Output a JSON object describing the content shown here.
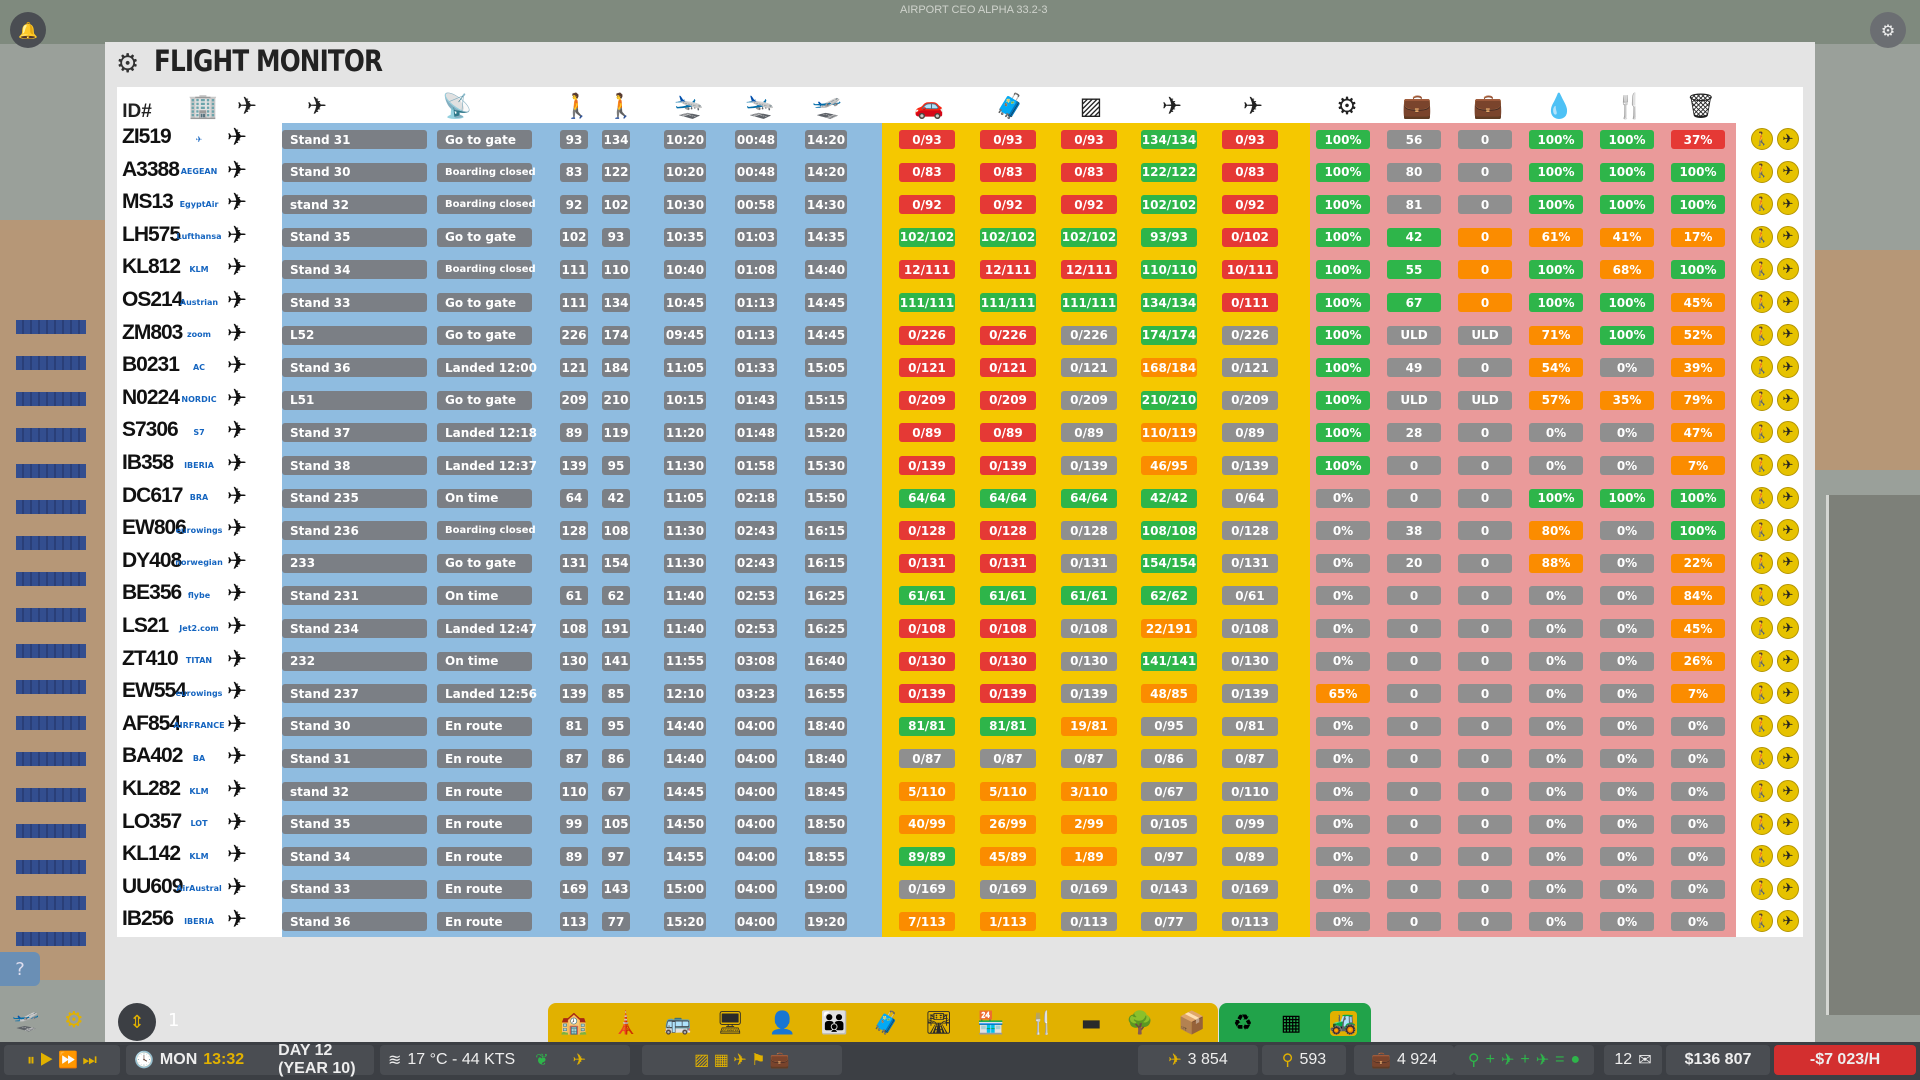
{
  "app": {
    "title": "FLIGHT MONITOR",
    "watermark": "AIRPORT CEO ALPHA 33.2-3"
  },
  "headers": {
    "id": "ID#"
  },
  "rows": [
    {
      "id": "ZI519",
      "logo": "✈",
      "stand": "Stand 31",
      "status": "Go to gate",
      "p1": "93",
      "p2": "134",
      "t1": "10:20",
      "t2": "00:48",
      "t3": "14:20",
      "b1": "0/93",
      "b2": "0/93",
      "b3": "0/93",
      "b4": "134/134",
      "b5": "0/93",
      "s1": "100%",
      "s2": "56",
      "s3": "0",
      "s4": "100%",
      "s5": "100%",
      "s6": "37%",
      "c": [
        "red",
        "red",
        "red",
        "grn",
        "red",
        "grn",
        "gry2",
        "gry2",
        "grn",
        "grn",
        "red"
      ]
    },
    {
      "id": "A3388",
      "logo": "AEGEAN",
      "stand": "Stand 30",
      "status": "Boarding closed",
      "p1": "83",
      "p2": "122",
      "t1": "10:20",
      "t2": "00:48",
      "t3": "14:20",
      "b1": "0/83",
      "b2": "0/83",
      "b3": "0/83",
      "b4": "122/122",
      "b5": "0/83",
      "s1": "100%",
      "s2": "80",
      "s3": "0",
      "s4": "100%",
      "s5": "100%",
      "s6": "100%",
      "c": [
        "red",
        "red",
        "red",
        "grn",
        "red",
        "grn",
        "gry2",
        "gry2",
        "grn",
        "grn",
        "grn"
      ]
    },
    {
      "id": "MS13",
      "logo": "EgyptAir",
      "stand": "stand 32",
      "status": "Boarding closed",
      "p1": "92",
      "p2": "102",
      "t1": "10:30",
      "t2": "00:58",
      "t3": "14:30",
      "b1": "0/92",
      "b2": "0/92",
      "b3": "0/92",
      "b4": "102/102",
      "b5": "0/92",
      "s1": "100%",
      "s2": "81",
      "s3": "0",
      "s4": "100%",
      "s5": "100%",
      "s6": "100%",
      "c": [
        "red",
        "red",
        "red",
        "grn",
        "red",
        "grn",
        "gry2",
        "gry2",
        "grn",
        "grn",
        "grn"
      ]
    },
    {
      "id": "LH575",
      "logo": "Lufthansa",
      "stand": "Stand 35",
      "status": "Go to gate",
      "p1": "102",
      "p2": "93",
      "t1": "10:35",
      "t2": "01:03",
      "t3": "14:35",
      "b1": "102/102",
      "b2": "102/102",
      "b3": "102/102",
      "b4": "93/93",
      "b5": "0/102",
      "s1": "100%",
      "s2": "42",
      "s3": "0",
      "s4": "61%",
      "s5": "41%",
      "s6": "17%",
      "c": [
        "grn",
        "grn",
        "grn",
        "grn",
        "red",
        "grn",
        "grn",
        "ora",
        "ora",
        "ora",
        "ora"
      ]
    },
    {
      "id": "KL812",
      "logo": "KLM",
      "stand": "Stand 34",
      "status": "Boarding closed",
      "p1": "111",
      "p2": "110",
      "t1": "10:40",
      "t2": "01:08",
      "t3": "14:40",
      "b1": "12/111",
      "b2": "12/111",
      "b3": "12/111",
      "b4": "110/110",
      "b5": "10/111",
      "s1": "100%",
      "s2": "55",
      "s3": "0",
      "s4": "100%",
      "s5": "68%",
      "s6": "100%",
      "c": [
        "red",
        "red",
        "red",
        "grn",
        "red",
        "grn",
        "grn",
        "ora",
        "grn",
        "ora",
        "grn"
      ]
    },
    {
      "id": "OS214",
      "logo": "Austrian",
      "stand": "Stand 33",
      "status": "Go to gate",
      "p1": "111",
      "p2": "134",
      "t1": "10:45",
      "t2": "01:13",
      "t3": "14:45",
      "b1": "111/111",
      "b2": "111/111",
      "b3": "111/111",
      "b4": "134/134",
      "b5": "0/111",
      "s1": "100%",
      "s2": "67",
      "s3": "0",
      "s4": "100%",
      "s5": "100%",
      "s6": "45%",
      "c": [
        "grn",
        "grn",
        "grn",
        "grn",
        "red",
        "grn",
        "grn",
        "ora",
        "grn",
        "grn",
        "ora"
      ]
    },
    {
      "id": "ZM803",
      "logo": "zoom",
      "stand": "L52",
      "status": "Go to gate",
      "p1": "226",
      "p2": "174",
      "t1": "09:45",
      "t2": "01:13",
      "t3": "14:45",
      "b1": "0/226",
      "b2": "0/226",
      "b3": "0/226",
      "b4": "174/174",
      "b5": "0/226",
      "s1": "100%",
      "s2": "ULD",
      "s3": "ULD",
      "s4": "71%",
      "s5": "100%",
      "s6": "52%",
      "c": [
        "red",
        "red",
        "gry2",
        "grn",
        "gry2",
        "grn",
        "gry2",
        "gry2",
        "ora",
        "grn",
        "ora"
      ]
    },
    {
      "id": "B0231",
      "logo": "AC",
      "stand": "Stand 36",
      "status": "Landed  12:00",
      "p1": "121",
      "p2": "184",
      "t1": "11:05",
      "t2": "01:33",
      "t3": "15:05",
      "b1": "0/121",
      "b2": "0/121",
      "b3": "0/121",
      "b4": "168/184",
      "b5": "0/121",
      "s1": "100%",
      "s2": "49",
      "s3": "0",
      "s4": "54%",
      "s5": "0%",
      "s6": "39%",
      "c": [
        "red",
        "red",
        "gry2",
        "ora",
        "gry2",
        "grn",
        "gry2",
        "gry2",
        "ora",
        "gry2",
        "ora"
      ]
    },
    {
      "id": "N0224",
      "logo": "NORDIC",
      "stand": "L51",
      "status": "Go to gate",
      "p1": "209",
      "p2": "210",
      "t1": "10:15",
      "t2": "01:43",
      "t3": "15:15",
      "b1": "0/209",
      "b2": "0/209",
      "b3": "0/209",
      "b4": "210/210",
      "b5": "0/209",
      "s1": "100%",
      "s2": "ULD",
      "s3": "ULD",
      "s4": "57%",
      "s5": "35%",
      "s6": "79%",
      "c": [
        "red",
        "red",
        "gry2",
        "grn",
        "gry2",
        "grn",
        "gry2",
        "gry2",
        "ora",
        "ora",
        "ora"
      ]
    },
    {
      "id": "S7306",
      "logo": "S7",
      "stand": "Stand 37",
      "status": "Landed  12:18",
      "p1": "89",
      "p2": "119",
      "t1": "11:20",
      "t2": "01:48",
      "t3": "15:20",
      "b1": "0/89",
      "b2": "0/89",
      "b3": "0/89",
      "b4": "110/119",
      "b5": "0/89",
      "s1": "100%",
      "s2": "28",
      "s3": "0",
      "s4": "0%",
      "s5": "0%",
      "s6": "47%",
      "c": [
        "red",
        "red",
        "gry2",
        "ora",
        "gry2",
        "grn",
        "gry2",
        "gry2",
        "gry2",
        "gry2",
        "ora"
      ]
    },
    {
      "id": "IB358",
      "logo": "IBERIA",
      "stand": "Stand 38",
      "status": "Landed  12:37",
      "p1": "139",
      "p2": "95",
      "t1": "11:30",
      "t2": "01:58",
      "t3": "15:30",
      "b1": "0/139",
      "b2": "0/139",
      "b3": "0/139",
      "b4": "46/95",
      "b5": "0/139",
      "s1": "100%",
      "s2": "0",
      "s3": "0",
      "s4": "0%",
      "s5": "0%",
      "s6": "7%",
      "c": [
        "red",
        "red",
        "gry2",
        "ora",
        "gry2",
        "grn",
        "gry2",
        "gry2",
        "gry2",
        "gry2",
        "ora"
      ]
    },
    {
      "id": "DC617",
      "logo": "BRA",
      "stand": "Stand 235",
      "status": "On time",
      "p1": "64",
      "p2": "42",
      "t1": "11:05",
      "t2": "02:18",
      "t3": "15:50",
      "b1": "64/64",
      "b2": "64/64",
      "b3": "64/64",
      "b4": "42/42",
      "b5": "0/64",
      "s1": "0%",
      "s2": "0",
      "s3": "0",
      "s4": "100%",
      "s5": "100%",
      "s6": "100%",
      "c": [
        "grn",
        "grn",
        "grn",
        "grn",
        "gry2",
        "gry2",
        "gry2",
        "gry2",
        "grn",
        "grn",
        "grn"
      ]
    },
    {
      "id": "EW806",
      "logo": "eurowings",
      "stand": "Stand 236",
      "status": "Boarding closed",
      "p1": "128",
      "p2": "108",
      "t1": "11:30",
      "t2": "02:43",
      "t3": "16:15",
      "b1": "0/128",
      "b2": "0/128",
      "b3": "0/128",
      "b4": "108/108",
      "b5": "0/128",
      "s1": "0%",
      "s2": "38",
      "s3": "0",
      "s4": "80%",
      "s5": "0%",
      "s6": "100%",
      "c": [
        "red",
        "red",
        "gry2",
        "grn",
        "gry2",
        "gry2",
        "gry2",
        "gry2",
        "ora",
        "gry2",
        "grn"
      ]
    },
    {
      "id": "DY408",
      "logo": "norwegian",
      "stand": "233",
      "status": "Go to gate",
      "p1": "131",
      "p2": "154",
      "t1": "11:30",
      "t2": "02:43",
      "t3": "16:15",
      "b1": "0/131",
      "b2": "0/131",
      "b3": "0/131",
      "b4": "154/154",
      "b5": "0/131",
      "s1": "0%",
      "s2": "20",
      "s3": "0",
      "s4": "88%",
      "s5": "0%",
      "s6": "22%",
      "c": [
        "red",
        "red",
        "gry2",
        "grn",
        "gry2",
        "gry2",
        "gry2",
        "gry2",
        "ora",
        "gry2",
        "ora"
      ]
    },
    {
      "id": "BE356",
      "logo": "flybe",
      "stand": "Stand 231",
      "status": "On time",
      "p1": "61",
      "p2": "62",
      "t1": "11:40",
      "t2": "02:53",
      "t3": "16:25",
      "b1": "61/61",
      "b2": "61/61",
      "b3": "61/61",
      "b4": "62/62",
      "b5": "0/61",
      "s1": "0%",
      "s2": "0",
      "s3": "0",
      "s4": "0%",
      "s5": "0%",
      "s6": "84%",
      "c": [
        "grn",
        "grn",
        "grn",
        "grn",
        "gry2",
        "gry2",
        "gry2",
        "gry2",
        "gry2",
        "gry2",
        "ora"
      ]
    },
    {
      "id": "LS21",
      "logo": "Jet2.com",
      "stand": "Stand 234",
      "status": "Landed  12:47",
      "p1": "108",
      "p2": "191",
      "t1": "11:40",
      "t2": "02:53",
      "t3": "16:25",
      "b1": "0/108",
      "b2": "0/108",
      "b3": "0/108",
      "b4": "22/191",
      "b5": "0/108",
      "s1": "0%",
      "s2": "0",
      "s3": "0",
      "s4": "0%",
      "s5": "0%",
      "s6": "45%",
      "c": [
        "red",
        "red",
        "gry2",
        "ora",
        "gry2",
        "gry2",
        "gry2",
        "gry2",
        "gry2",
        "gry2",
        "ora"
      ]
    },
    {
      "id": "ZT410",
      "logo": "TITAN",
      "stand": "232",
      "status": "On time",
      "p1": "130",
      "p2": "141",
      "t1": "11:55",
      "t2": "03:08",
      "t3": "16:40",
      "b1": "0/130",
      "b2": "0/130",
      "b3": "0/130",
      "b4": "141/141",
      "b5": "0/130",
      "s1": "0%",
      "s2": "0",
      "s3": "0",
      "s4": "0%",
      "s5": "0%",
      "s6": "26%",
      "c": [
        "red",
        "red",
        "gry2",
        "grn",
        "gry2",
        "gry2",
        "gry2",
        "gry2",
        "gry2",
        "gry2",
        "ora"
      ]
    },
    {
      "id": "EW554",
      "logo": "eurowings",
      "stand": "Stand 237",
      "status": "Landed  12:56",
      "p1": "139",
      "p2": "85",
      "t1": "12:10",
      "t2": "03:23",
      "t3": "16:55",
      "b1": "0/139",
      "b2": "0/139",
      "b3": "0/139",
      "b4": "48/85",
      "b5": "0/139",
      "s1": "65%",
      "s2": "0",
      "s3": "0",
      "s4": "0%",
      "s5": "0%",
      "s6": "7%",
      "c": [
        "red",
        "red",
        "gry2",
        "ora",
        "gry2",
        "ora",
        "gry2",
        "gry2",
        "gry2",
        "gry2",
        "ora"
      ]
    },
    {
      "id": "AF854",
      "logo": "AIRFRANCE",
      "stand": "Stand 30",
      "status": "En route",
      "p1": "81",
      "p2": "95",
      "t1": "14:40",
      "t2": "04:00",
      "t3": "18:40",
      "b1": "81/81",
      "b2": "81/81",
      "b3": "19/81",
      "b4": "0/95",
      "b5": "0/81",
      "s1": "0%",
      "s2": "0",
      "s3": "0",
      "s4": "0%",
      "s5": "0%",
      "s6": "0%",
      "c": [
        "grn",
        "grn",
        "ora",
        "gry2",
        "gry2",
        "gry2",
        "gry2",
        "gry2",
        "gry2",
        "gry2",
        "gry2"
      ]
    },
    {
      "id": "BA402",
      "logo": "BA",
      "stand": "Stand 31",
      "status": "En route",
      "p1": "87",
      "p2": "86",
      "t1": "14:40",
      "t2": "04:00",
      "t3": "18:40",
      "b1": "0/87",
      "b2": "0/87",
      "b3": "0/87",
      "b4": "0/86",
      "b5": "0/87",
      "s1": "0%",
      "s2": "0",
      "s3": "0",
      "s4": "0%",
      "s5": "0%",
      "s6": "0%",
      "c": [
        "gry2",
        "gry2",
        "gry2",
        "gry2",
        "gry2",
        "gry2",
        "gry2",
        "gry2",
        "gry2",
        "gry2",
        "gry2"
      ]
    },
    {
      "id": "KL282",
      "logo": "KLM",
      "stand": "stand 32",
      "status": "En route",
      "p1": "110",
      "p2": "67",
      "t1": "14:45",
      "t2": "04:00",
      "t3": "18:45",
      "b1": "5/110",
      "b2": "5/110",
      "b3": "3/110",
      "b4": "0/67",
      "b5": "0/110",
      "s1": "0%",
      "s2": "0",
      "s3": "0",
      "s4": "0%",
      "s5": "0%",
      "s6": "0%",
      "c": [
        "ora",
        "ora",
        "ora",
        "gry2",
        "gry2",
        "gry2",
        "gry2",
        "gry2",
        "gry2",
        "gry2",
        "gry2"
      ]
    },
    {
      "id": "LO357",
      "logo": "LOT",
      "stand": "Stand 35",
      "status": "En route",
      "p1": "99",
      "p2": "105",
      "t1": "14:50",
      "t2": "04:00",
      "t3": "18:50",
      "b1": "40/99",
      "b2": "26/99",
      "b3": "2/99",
      "b4": "0/105",
      "b5": "0/99",
      "s1": "0%",
      "s2": "0",
      "s3": "0",
      "s4": "0%",
      "s5": "0%",
      "s6": "0%",
      "c": [
        "ora",
        "ora",
        "ora",
        "gry2",
        "gry2",
        "gry2",
        "gry2",
        "gry2",
        "gry2",
        "gry2",
        "gry2"
      ]
    },
    {
      "id": "KL142",
      "logo": "KLM",
      "stand": "Stand 34",
      "status": "En route",
      "p1": "89",
      "p2": "97",
      "t1": "14:55",
      "t2": "04:00",
      "t3": "18:55",
      "b1": "89/89",
      "b2": "45/89",
      "b3": "1/89",
      "b4": "0/97",
      "b5": "0/89",
      "s1": "0%",
      "s2": "0",
      "s3": "0",
      "s4": "0%",
      "s5": "0%",
      "s6": "0%",
      "c": [
        "grn",
        "ora",
        "ora",
        "gry2",
        "gry2",
        "gry2",
        "gry2",
        "gry2",
        "gry2",
        "gry2",
        "gry2"
      ]
    },
    {
      "id": "UU609",
      "logo": "AirAustral",
      "stand": "Stand 33",
      "status": "En route",
      "p1": "169",
      "p2": "143",
      "t1": "15:00",
      "t2": "04:00",
      "t3": "19:00",
      "b1": "0/169",
      "b2": "0/169",
      "b3": "0/169",
      "b4": "0/143",
      "b5": "0/169",
      "s1": "0%",
      "s2": "0",
      "s3": "0",
      "s4": "0%",
      "s5": "0%",
      "s6": "0%",
      "c": [
        "gry2",
        "gry2",
        "gry2",
        "gry2",
        "gry2",
        "gry2",
        "gry2",
        "gry2",
        "gry2",
        "gry2",
        "gry2"
      ]
    },
    {
      "id": "IB256",
      "logo": "IBERIA",
      "stand": "Stand 36",
      "status": "En route",
      "p1": "113",
      "p2": "77",
      "t1": "15:20",
      "t2": "04:00",
      "t3": "19:20",
      "b1": "7/113",
      "b2": "1/113",
      "b3": "0/113",
      "b4": "0/77",
      "b5": "0/113",
      "s1": "0%",
      "s2": "0",
      "s3": "0",
      "s4": "0%",
      "s5": "0%",
      "s6": "0%",
      "c": [
        "ora",
        "ora",
        "gry2",
        "gry2",
        "gry2",
        "gry2",
        "gry2",
        "gry2",
        "gry2",
        "gry2",
        "gry2"
      ]
    }
  ],
  "bottom": {
    "day": "MON",
    "time": "13:32",
    "date": "DAY 12 (YEAR 10)",
    "weather": "17 °C - 44 KTS",
    "stat1": "3 854",
    "stat2": "593",
    "stat3": "4 924",
    "stat4": "19",
    "mail": "12",
    "money": "$136 807",
    "rate": "-$7 023/H",
    "page": "1"
  },
  "colors": {
    "blue": "#8fbce0",
    "yellow": "#f5c800",
    "pink": "#ea9a9a",
    "green": "#2eb54a",
    "red": "#e53935",
    "orange": "#fb8c00"
  }
}
